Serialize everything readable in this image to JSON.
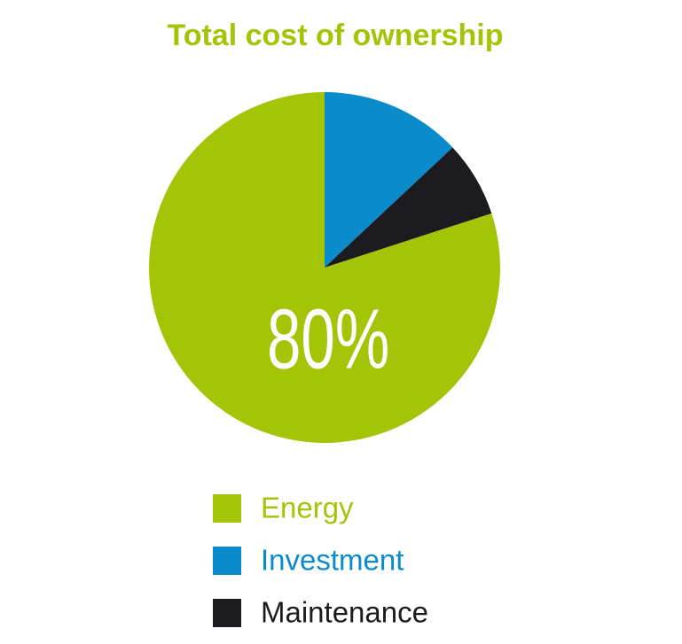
{
  "chart_data": {
    "type": "pie",
    "title": "Total cost of ownership",
    "categories": [
      "Energy",
      "Investment",
      "Maintenance"
    ],
    "values": [
      80,
      13,
      7
    ],
    "value_labels": [
      "80%",
      null,
      null
    ],
    "colors": [
      "#a4c408",
      "#0a8bcb",
      "#1c1b1f"
    ]
  }
}
